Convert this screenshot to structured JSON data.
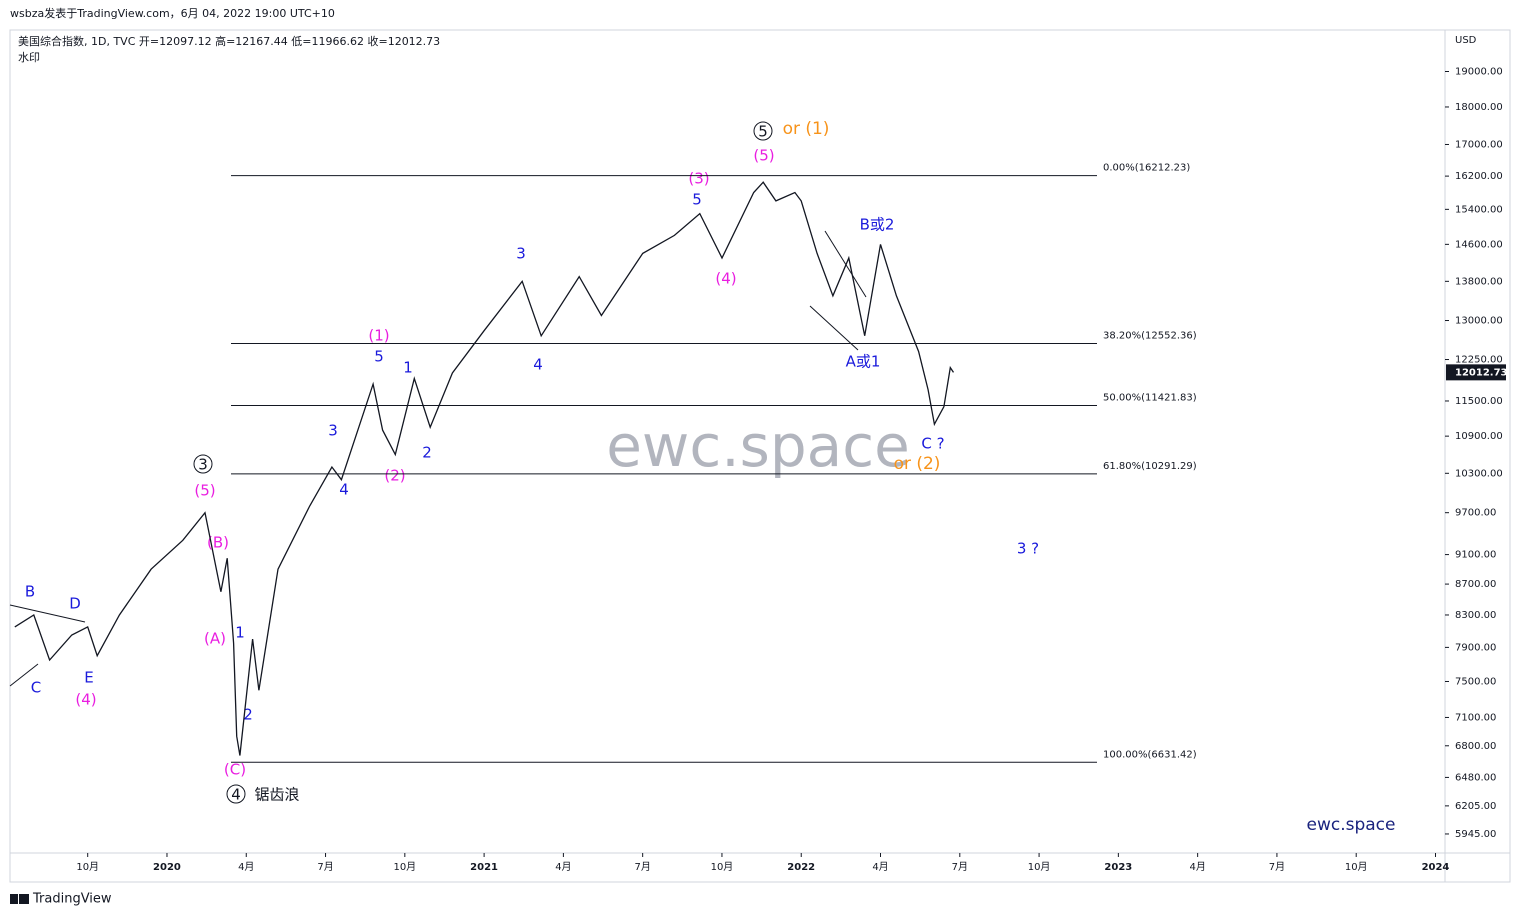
{
  "chart_data": {
    "type": "line",
    "published": "wsbza发表于TradingView.com，6月 04, 2022 19:00 UTC+10",
    "title": "美国综合指数, 1D, TVC  开=12097.12  高=12167.44  低=11966.62  收=12012.73",
    "subtitle": "水印",
    "currency": "USD",
    "footer": "TradingView",
    "log_scale": true,
    "series": [
      {
        "name": "美国综合指数",
        "color": "#131722",
        "x": [
          2019.52,
          2019.58,
          2019.63,
          2019.7,
          2019.75,
          2019.78,
          2019.85,
          2019.95,
          2020.05,
          2020.12,
          2020.17,
          2020.19,
          2020.21,
          2020.22,
          2020.23,
          2020.27,
          2020.29,
          2020.35,
          2020.45,
          2020.52,
          2020.55,
          2020.65,
          2020.68,
          2020.72,
          2020.78,
          2020.83,
          2020.9,
          2021.0,
          2021.12,
          2021.18,
          2021.3,
          2021.37,
          2021.5,
          2021.6,
          2021.68,
          2021.75,
          2021.85,
          2021.88,
          2021.92,
          2021.98,
          2022.0,
          2022.05,
          2022.1,
          2022.15,
          2022.2,
          2022.25,
          2022.3,
          2022.37,
          2022.4,
          2022.42,
          2022.45,
          2022.47,
          2022.48
        ],
        "values": [
          8150,
          8300,
          7750,
          8050,
          8150,
          7800,
          8300,
          8900,
          9300,
          9700,
          8600,
          9050,
          7950,
          6900,
          6700,
          8000,
          7400,
          8900,
          9800,
          10400,
          10200,
          11800,
          11000,
          10600,
          11900,
          11050,
          12000,
          12800,
          13800,
          12700,
          13900,
          13100,
          14400,
          14800,
          15300,
          14300,
          15800,
          16050,
          15600,
          15800,
          15600,
          14400,
          13500,
          14300,
          12700,
          14600,
          13500,
          12400,
          11700,
          11100,
          11400,
          12100,
          12012.73
        ]
      }
    ],
    "last_price": 12012.73,
    "xlim": [
      2019.505,
      2024.03
    ],
    "xticks": [
      {
        "value": 2019.75,
        "label": "10月"
      },
      {
        "value": 2020,
        "label": "2020"
      },
      {
        "value": 2020.25,
        "label": "4月"
      },
      {
        "value": 2020.5,
        "label": "7月"
      },
      {
        "value": 2020.75,
        "label": "10月"
      },
      {
        "value": 2021,
        "label": "2021"
      },
      {
        "value": 2021.25,
        "label": "4月"
      },
      {
        "value": 2021.5,
        "label": "7月"
      },
      {
        "value": 2021.75,
        "label": "10月"
      },
      {
        "value": 2022,
        "label": "2022"
      },
      {
        "value": 2022.25,
        "label": "4月"
      },
      {
        "value": 2022.5,
        "label": "7月"
      },
      {
        "value": 2022.75,
        "label": "10月"
      },
      {
        "value": 2023,
        "label": "2023"
      },
      {
        "value": 2023.25,
        "label": "4月"
      },
      {
        "value": 2023.5,
        "label": "7月"
      },
      {
        "value": 2023.75,
        "label": "10月"
      },
      {
        "value": 2024,
        "label": "2024"
      }
    ],
    "ylim": [
      5775,
      20240
    ],
    "yticks": [
      {
        "value": 19000,
        "label": "19000.00"
      },
      {
        "value": 18000,
        "label": "18000.00"
      },
      {
        "value": 17000,
        "label": "17000.00"
      },
      {
        "value": 16200,
        "label": "16200.00"
      },
      {
        "value": 15400,
        "label": "15400.00"
      },
      {
        "value": 14600,
        "label": "14600.00"
      },
      {
        "value": 13800,
        "label": "13800.00"
      },
      {
        "value": 13000,
        "label": "13000.00"
      },
      {
        "value": 12250,
        "label": "12250.00"
      },
      {
        "value": 11500,
        "label": "11500.00"
      },
      {
        "value": 10900,
        "label": "10900.00"
      },
      {
        "value": 10300,
        "label": "10300.00"
      },
      {
        "value": 9700,
        "label": "9700.00"
      },
      {
        "value": 9100,
        "label": "9100.00"
      },
      {
        "value": 8700,
        "label": "8700.00"
      },
      {
        "value": 8300,
        "label": "8300.00"
      },
      {
        "value": 7900,
        "label": "7900.00"
      },
      {
        "value": 7500,
        "label": "7500.00"
      },
      {
        "value": 7100,
        "label": "7100.00"
      },
      {
        "value": 6800,
        "label": "6800.00"
      },
      {
        "value": 6480,
        "label": "6480.00"
      },
      {
        "value": 6205,
        "label": "6205.00"
      },
      {
        "value": 5945,
        "label": "5945.00"
      }
    ],
    "fib_levels": [
      {
        "value": 16212.23,
        "label": "0.00%(16212.23)"
      },
      {
        "value": 12552.36,
        "label": "38.20%(12552.36)"
      },
      {
        "value": 11421.83,
        "label": "50.00%(11421.83)"
      },
      {
        "value": 10291.29,
        "label": "61.80%(10291.29)"
      },
      {
        "value": 6631.42,
        "label": "100.00%(6631.42)"
      }
    ],
    "annotations": [
      "B",
      "D",
      "C",
      "E",
      "(4)",
      "3",
      "(5)",
      "(B)",
      "(A)",
      "1",
      "2",
      "(C)",
      "4",
      "锯齿浪",
      "3",
      "4",
      "(1)",
      "5",
      "1",
      "(2)",
      "2",
      "3",
      "4",
      "(3)",
      "5",
      "(4)",
      "5",
      "or (1)",
      "(5)",
      "B或2",
      "A或1",
      "C ?",
      "or (2)",
      "3 ?",
      "ewc.space",
      "ewc.space"
    ]
  }
}
